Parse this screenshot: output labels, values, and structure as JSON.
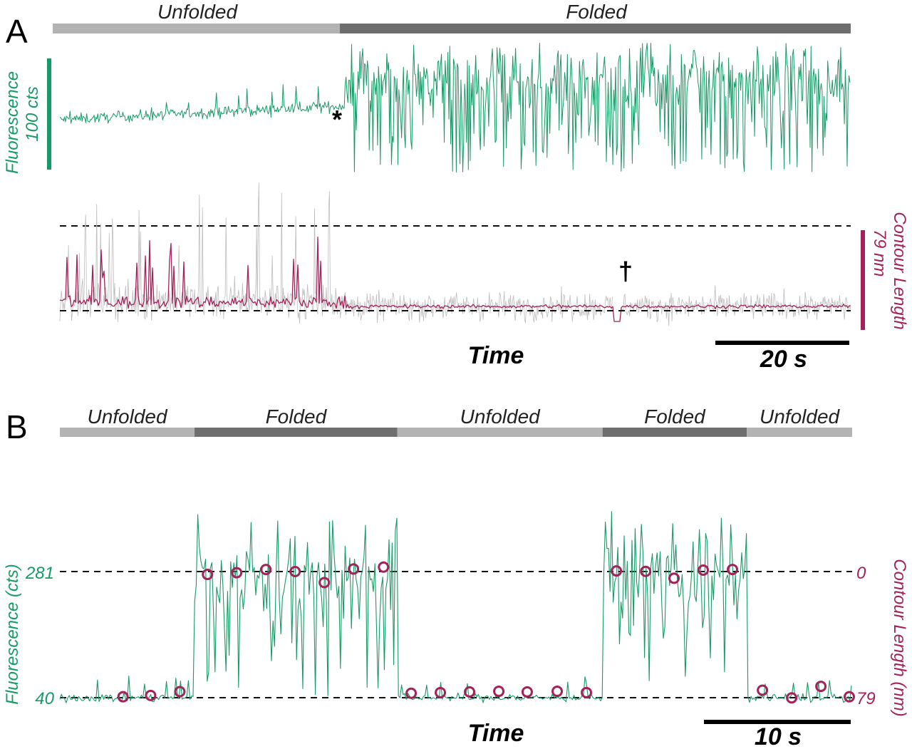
{
  "colors": {
    "fluorescence": "#179a66",
    "contour": "#a3225a",
    "raw_trace": "#b8b8b8",
    "unfolded_bar": "#b3b3b3",
    "folded_bar": "#6e6e6e"
  },
  "chart_data": [
    {
      "panel": "A",
      "type": "line",
      "xlabel": "Time",
      "scale_bar": {
        "value": 20,
        "label": "20 s"
      },
      "states": [
        {
          "label": "Unfolded",
          "kind": "unfolded",
          "start": 0,
          "end": 0.355
        },
        {
          "label": "Folded",
          "kind": "folded",
          "start": 0.355,
          "end": 1
        }
      ],
      "fluorescence": {
        "axis_label": "Fluorescence",
        "scale_bar_label": "100 cts",
        "unfolded_level": 45,
        "folded_mean": 145,
        "transition_marker": "*"
      },
      "contour_length": {
        "axis_label": "Contour Length",
        "scale_bar_label": "79 nm",
        "reference_levels_nm": [
          0,
          79
        ],
        "gap_marker": "†"
      }
    },
    {
      "panel": "B",
      "type": "line",
      "xlabel": "Time",
      "scale_bar": {
        "value": 10,
        "label": "10 s"
      },
      "states": [
        {
          "label": "Unfolded",
          "kind": "unfolded",
          "start": 0,
          "end": 0.17
        },
        {
          "label": "Folded",
          "kind": "folded",
          "start": 0.17,
          "end": 0.426
        },
        {
          "label": "Unfolded",
          "kind": "unfolded",
          "start": 0.426,
          "end": 0.685
        },
        {
          "label": "Folded",
          "kind": "folded",
          "start": 0.685,
          "end": 0.867
        },
        {
          "label": "Unfolded",
          "kind": "unfolded",
          "start": 0.867,
          "end": 1
        }
      ],
      "left_axis": {
        "label": "Fluorescence (cts)",
        "ticks": [
          "281",
          "40"
        ],
        "values": [
          281,
          40
        ]
      },
      "right_axis": {
        "label": "Contour Length (nm)",
        "ticks": [
          "0",
          "79"
        ],
        "values": [
          0,
          79
        ]
      },
      "contour_points": [
        {
          "t": 0.08,
          "nm": 78.4
        },
        {
          "t": 0.115,
          "nm": 77.6
        },
        {
          "t": 0.152,
          "nm": 75.2
        },
        {
          "t": 0.187,
          "nm": 1.8
        },
        {
          "t": 0.224,
          "nm": 0.7
        },
        {
          "t": 0.261,
          "nm": -1.3
        },
        {
          "t": 0.298,
          "nm": 0.0
        },
        {
          "t": 0.335,
          "nm": 6.9
        },
        {
          "t": 0.372,
          "nm": -1.6
        },
        {
          "t": 0.41,
          "nm": -2.8
        },
        {
          "t": 0.445,
          "nm": 76.2
        },
        {
          "t": 0.482,
          "nm": 75.8
        },
        {
          "t": 0.519,
          "nm": 75.4
        },
        {
          "t": 0.556,
          "nm": 75.0
        },
        {
          "t": 0.592,
          "nm": 75.4
        },
        {
          "t": 0.63,
          "nm": 75.0
        },
        {
          "t": 0.667,
          "nm": 75.8
        },
        {
          "t": 0.705,
          "nm": -0.4
        },
        {
          "t": 0.742,
          "nm": -0.1
        },
        {
          "t": 0.778,
          "nm": 4.2
        },
        {
          "t": 0.815,
          "nm": -0.9
        },
        {
          "t": 0.852,
          "nm": -1.3
        },
        {
          "t": 0.89,
          "nm": 74.3
        },
        {
          "t": 0.927,
          "nm": 79.1
        },
        {
          "t": 0.964,
          "nm": 71.9
        },
        {
          "t": 1.0,
          "nm": 78.4
        }
      ]
    }
  ]
}
